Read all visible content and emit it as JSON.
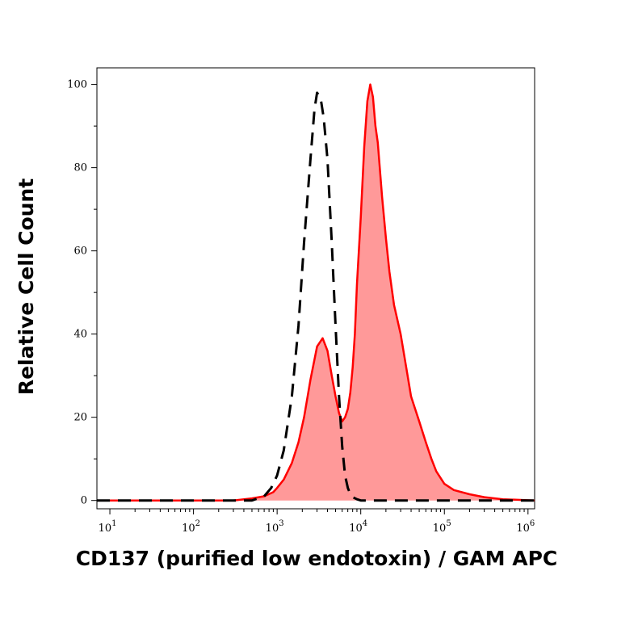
{
  "chart_data": {
    "type": "area",
    "title": "",
    "xlabel": "CD137 (purified low endotoxin) / GAM APC",
    "ylabel": "Relative Cell Count",
    "x_scale": "log",
    "xlim": [
      7,
      1200000
    ],
    "ylim": [
      -2,
      104
    ],
    "grid": false,
    "legend": "none",
    "x_ticks": [
      {
        "base": "10",
        "exp": "1",
        "value": 10
      },
      {
        "base": "10",
        "exp": "2",
        "value": 100
      },
      {
        "base": "10",
        "exp": "3",
        "value": 1000
      },
      {
        "base": "10",
        "exp": "4",
        "value": 10000
      },
      {
        "base": "10",
        "exp": "5",
        "value": 100000
      },
      {
        "base": "10",
        "exp": "6",
        "value": 1000000
      }
    ],
    "y_ticks": [
      {
        "label": "0",
        "value": 0
      },
      {
        "label": "20",
        "value": 20
      },
      {
        "label": "40",
        "value": 40
      },
      {
        "label": "60",
        "value": 60
      },
      {
        "label": "80",
        "value": 80
      },
      {
        "label": "100",
        "value": 100
      }
    ],
    "series": [
      {
        "style": "filled",
        "color": "#ff0000",
        "fill": "#ff9999",
        "x": [
          7,
          300,
          500,
          700,
          900,
          1000,
          1200,
          1500,
          1800,
          2100,
          2500,
          3000,
          3500,
          4000,
          4500,
          5000,
          5500,
          6000,
          6500,
          7000,
          7500,
          8000,
          8500,
          9000,
          10000,
          11000,
          12000,
          13000,
          14000,
          15000,
          16000,
          18000,
          20000,
          22000,
          25000,
          30000,
          35000,
          40000,
          50000,
          60000,
          70000,
          80000,
          100000,
          130000,
          200000,
          300000,
          500000,
          1200000
        ],
        "y": [
          0,
          0,
          0.5,
          1,
          2,
          3,
          5,
          9,
          14,
          20,
          29,
          37,
          39,
          36,
          30,
          25,
          21,
          19,
          20,
          22,
          26,
          32,
          40,
          52,
          68,
          85,
          96,
          100,
          97,
          90,
          86,
          73,
          63,
          55,
          47,
          40,
          32,
          25,
          19,
          14,
          10,
          7,
          4,
          2.5,
          1.5,
          0.8,
          0.3,
          0
        ]
      },
      {
        "style": "dashed",
        "color": "#000000",
        "x": [
          7,
          500,
          700,
          850,
          1000,
          1200,
          1500,
          1800,
          2100,
          2500,
          2800,
          3000,
          3300,
          3600,
          4000,
          4500,
          5000,
          5500,
          6000,
          6500,
          7000,
          7500,
          8000,
          9000,
          10000,
          12000,
          1200000
        ],
        "y": [
          0,
          0,
          1,
          3,
          6,
          12,
          25,
          42,
          62,
          82,
          94,
          98,
          97,
          92,
          82,
          62,
          42,
          25,
          13,
          6,
          3,
          1.5,
          0.8,
          0.3,
          0,
          0,
          0
        ]
      }
    ]
  }
}
